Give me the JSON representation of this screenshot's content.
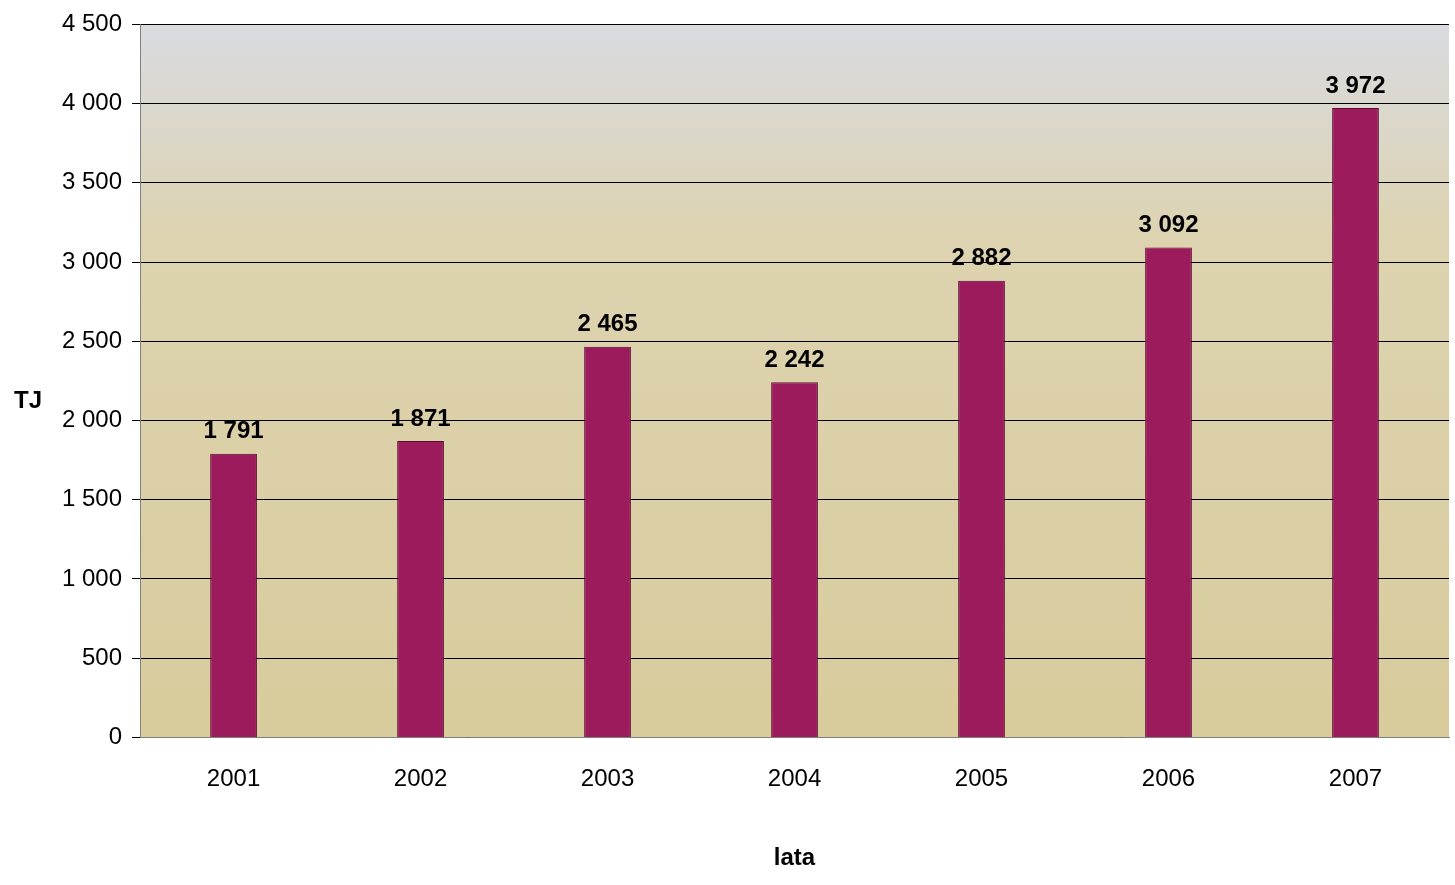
{
  "chart_data": {
    "type": "bar",
    "x_label": "lata",
    "y_label": "TJ",
    "categories": [
      "2001",
      "2002",
      "2003",
      "2004",
      "2005",
      "2006",
      "2007"
    ],
    "values": [
      1791,
      1871,
      2465,
      2242,
      2882,
      3092,
      3972
    ],
    "value_labels": [
      "1 791",
      "1 871",
      "2 465",
      "2 242",
      "2 882",
      "3 092",
      "3 972"
    ],
    "data_labels": true,
    "color": "#9b1b5c",
    "ylim": [
      0,
      4500
    ],
    "yticks": [
      0,
      500,
      {
        "value": 1000,
        "label": "1 000"
      },
      {
        "value": 1500,
        "label": "1 500"
      },
      {
        "value": 2000,
        "label": "2 000"
      },
      {
        "value": 2500,
        "label": "2 500"
      },
      {
        "value": 3000,
        "label": "3 000"
      },
      {
        "value": 3500,
        "label": "3 500"
      },
      {
        "value": 4000,
        "label": "4 000"
      },
      {
        "value": 4500,
        "label": "4 500"
      }
    ],
    "grid": true
  }
}
